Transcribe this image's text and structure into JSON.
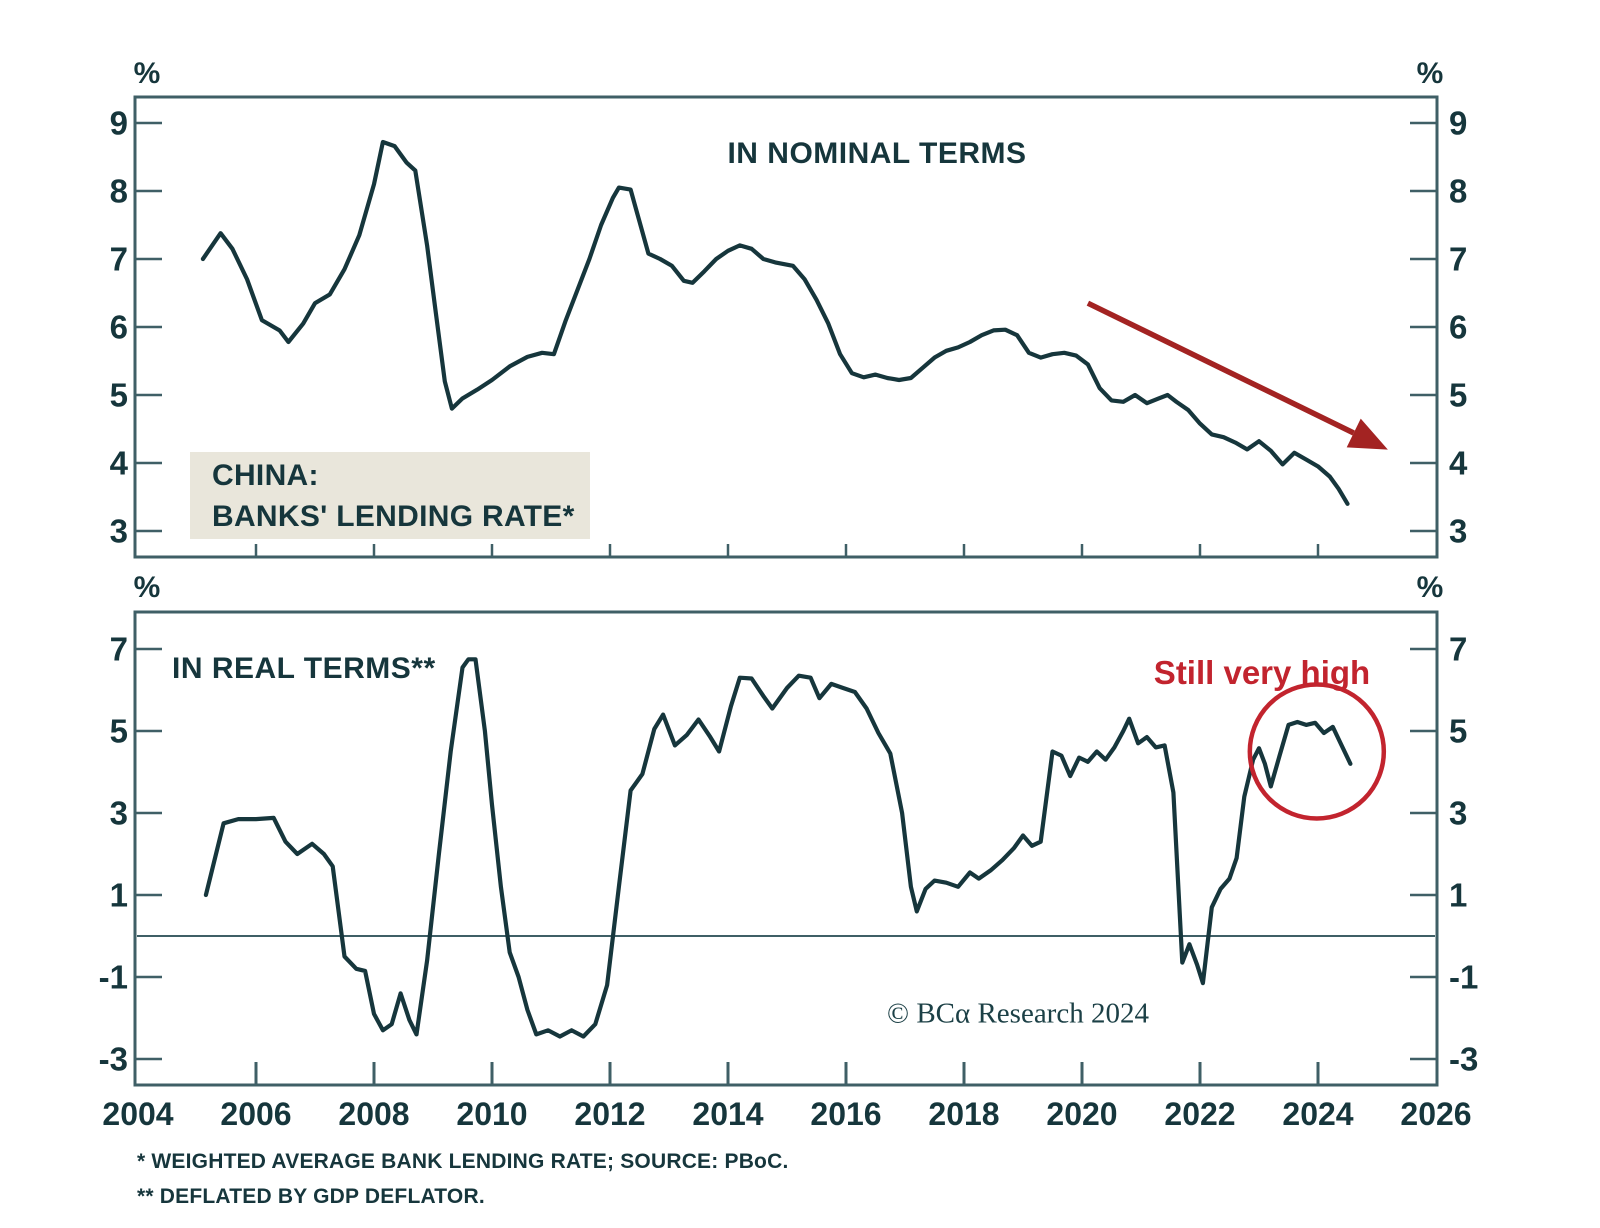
{
  "colors": {
    "line_teal": "#16363c",
    "axis_teal": "#3f5f66",
    "arrow_red": "#a32322",
    "accent_red": "#c2242e",
    "label_box_beige": "#e9e6db",
    "background": "#ffffff"
  },
  "labels": {
    "percent": "%"
  },
  "footnotes": [
    "* WEIGHTED AVERAGE BANK LENDING RATE; SOURCE: PBoC.",
    "** DEFLATED BY GDP DEFLATOR."
  ],
  "chart_data": [
    {
      "type": "line",
      "panel": "top",
      "title": "IN NOMINAL TERMS",
      "label_box": {
        "line1": "CHINA:",
        "line2": "BANKS' LENDING RATE*"
      },
      "unit": "%",
      "yticks": [
        9,
        8,
        7,
        6,
        5,
        4,
        3
      ],
      "xticks": [
        2004,
        2006,
        2008,
        2010,
        2012,
        2014,
        2016,
        2018,
        2020,
        2022,
        2024,
        2026
      ],
      "ylim": [
        2.6,
        9.4
      ],
      "xlim": [
        2004,
        2026
      ],
      "grid": false,
      "series": [
        {
          "name": "China banks' weighted average lending rate, nominal (%)",
          "x": [
            2005.1,
            2005.4,
            2005.6,
            2005.85,
            2006.1,
            2006.4,
            2006.55,
            2006.8,
            2007.0,
            2007.25,
            2007.5,
            2007.75,
            2008.0,
            2008.15,
            2008.35,
            2008.55,
            2008.7,
            2008.9,
            2009.05,
            2009.2,
            2009.32,
            2009.5,
            2009.75,
            2010.0,
            2010.3,
            2010.6,
            2010.85,
            2011.05,
            2011.25,
            2011.45,
            2011.65,
            2011.85,
            2012.05,
            2012.15,
            2012.35,
            2012.5,
            2012.65,
            2012.85,
            2013.05,
            2013.25,
            2013.4,
            2013.6,
            2013.8,
            2014.0,
            2014.2,
            2014.4,
            2014.6,
            2014.8,
            2015.1,
            2015.3,
            2015.5,
            2015.7,
            2015.9,
            2016.1,
            2016.3,
            2016.5,
            2016.7,
            2016.9,
            2017.1,
            2017.3,
            2017.5,
            2017.7,
            2017.9,
            2018.1,
            2018.3,
            2018.5,
            2018.7,
            2018.9,
            2019.1,
            2019.3,
            2019.5,
            2019.7,
            2019.9,
            2020.1,
            2020.3,
            2020.5,
            2020.7,
            2020.9,
            2021.1,
            2021.3,
            2021.45,
            2021.6,
            2021.8,
            2022.0,
            2022.2,
            2022.4,
            2022.6,
            2022.8,
            2023.0,
            2023.2,
            2023.4,
            2023.6,
            2023.8,
            2024.0,
            2024.2,
            2024.35,
            2024.5
          ],
          "y": [
            7.0,
            7.38,
            7.15,
            6.7,
            6.1,
            5.95,
            5.78,
            6.05,
            6.35,
            6.48,
            6.85,
            7.35,
            8.1,
            8.72,
            8.66,
            8.42,
            8.3,
            7.2,
            6.2,
            5.2,
            4.8,
            4.95,
            5.08,
            5.22,
            5.42,
            5.56,
            5.62,
            5.6,
            6.1,
            6.55,
            7.0,
            7.5,
            7.9,
            8.05,
            8.02,
            7.55,
            7.08,
            7.0,
            6.9,
            6.68,
            6.65,
            6.82,
            7.0,
            7.12,
            7.2,
            7.15,
            7.0,
            6.95,
            6.9,
            6.7,
            6.4,
            6.05,
            5.6,
            5.32,
            5.26,
            5.3,
            5.25,
            5.22,
            5.25,
            5.4,
            5.55,
            5.65,
            5.7,
            5.78,
            5.88,
            5.95,
            5.96,
            5.88,
            5.62,
            5.55,
            5.6,
            5.62,
            5.58,
            5.45,
            5.1,
            4.92,
            4.9,
            5.0,
            4.88,
            4.95,
            5.0,
            4.9,
            4.78,
            4.58,
            4.42,
            4.38,
            4.3,
            4.2,
            4.32,
            4.18,
            3.98,
            4.15,
            4.05,
            3.95,
            3.8,
            3.62,
            3.4
          ]
        }
      ],
      "annotations": {
        "arrow": {
          "from": [
            2020.1,
            6.35
          ],
          "to": [
            2024.75,
            4.38
          ],
          "color": "#a32322"
        }
      }
    },
    {
      "type": "line",
      "panel": "bottom",
      "title": "IN REAL TERMS**",
      "unit": "%",
      "yticks": [
        7,
        5,
        3,
        1,
        -1,
        -3
      ],
      "xticks": [
        2004,
        2006,
        2008,
        2010,
        2012,
        2014,
        2016,
        2018,
        2020,
        2022,
        2024,
        2026
      ],
      "ylim": [
        -3.6,
        7.9
      ],
      "xlim": [
        2004,
        2026
      ],
      "zero_line": true,
      "grid": false,
      "credit": "© BCα Research 2024",
      "series": [
        {
          "name": "China banks' lending rate deflated by GDP deflator (%)",
          "x": [
            2005.15,
            2005.45,
            2005.7,
            2006.0,
            2006.3,
            2006.5,
            2006.7,
            2006.95,
            2007.15,
            2007.3,
            2007.5,
            2007.7,
            2007.85,
            2008.0,
            2008.15,
            2008.3,
            2008.45,
            2008.6,
            2008.72,
            2008.9,
            2009.1,
            2009.3,
            2009.5,
            2009.6,
            2009.72,
            2009.88,
            2010.0,
            2010.15,
            2010.3,
            2010.45,
            2010.6,
            2010.75,
            2010.95,
            2011.15,
            2011.35,
            2011.55,
            2011.75,
            2011.95,
            2012.15,
            2012.35,
            2012.55,
            2012.75,
            2012.9,
            2013.1,
            2013.3,
            2013.5,
            2013.7,
            2013.85,
            2014.05,
            2014.2,
            2014.4,
            2014.6,
            2014.75,
            2015.0,
            2015.2,
            2015.4,
            2015.55,
            2015.75,
            2015.95,
            2016.15,
            2016.35,
            2016.55,
            2016.75,
            2016.95,
            2017.1,
            2017.2,
            2017.35,
            2017.5,
            2017.7,
            2017.9,
            2018.1,
            2018.25,
            2018.45,
            2018.65,
            2018.85,
            2019.0,
            2019.15,
            2019.3,
            2019.5,
            2019.65,
            2019.8,
            2019.95,
            2020.1,
            2020.25,
            2020.4,
            2020.55,
            2020.7,
            2020.8,
            2020.95,
            2021.1,
            2021.25,
            2021.4,
            2021.55,
            2021.7,
            2021.82,
            2021.95,
            2022.05,
            2022.2,
            2022.35,
            2022.5,
            2022.62,
            2022.75,
            2022.9,
            2023.0,
            2023.1,
            2023.2,
            2023.35,
            2023.5,
            2023.65,
            2023.8,
            2023.95,
            2024.1,
            2024.25,
            2024.4,
            2024.55
          ],
          "y": [
            1.0,
            2.75,
            2.85,
            2.85,
            2.88,
            2.3,
            2.0,
            2.25,
            2.0,
            1.7,
            -0.5,
            -0.8,
            -0.85,
            -1.9,
            -2.3,
            -2.15,
            -1.4,
            -2.05,
            -2.4,
            -0.6,
            2.0,
            4.5,
            6.55,
            6.75,
            6.75,
            5.0,
            3.2,
            1.2,
            -0.4,
            -1.0,
            -1.8,
            -2.4,
            -2.3,
            -2.45,
            -2.3,
            -2.45,
            -2.15,
            -1.2,
            1.2,
            3.55,
            3.95,
            5.05,
            5.4,
            4.65,
            4.9,
            5.28,
            4.85,
            4.5,
            5.6,
            6.3,
            6.28,
            5.85,
            5.55,
            6.05,
            6.35,
            6.3,
            5.8,
            6.15,
            6.05,
            5.95,
            5.55,
            4.95,
            4.45,
            3.0,
            1.2,
            0.6,
            1.15,
            1.35,
            1.3,
            1.2,
            1.55,
            1.4,
            1.6,
            1.85,
            2.15,
            2.45,
            2.2,
            2.3,
            4.5,
            4.4,
            3.9,
            4.35,
            4.25,
            4.5,
            4.3,
            4.6,
            5.0,
            5.3,
            4.7,
            4.85,
            4.6,
            4.65,
            3.5,
            -0.65,
            -0.2,
            -0.7,
            -1.15,
            0.7,
            1.15,
            1.4,
            1.9,
            3.4,
            4.3,
            4.58,
            4.2,
            3.65,
            4.4,
            5.15,
            5.22,
            5.15,
            5.2,
            4.95,
            5.1,
            4.65,
            4.2
          ]
        }
      ],
      "annotations": {
        "label": "Still very high",
        "circle_center": [
          2023.98,
          4.5
        ],
        "circle_radius_px": 67,
        "color": "#c2242e"
      }
    }
  ]
}
